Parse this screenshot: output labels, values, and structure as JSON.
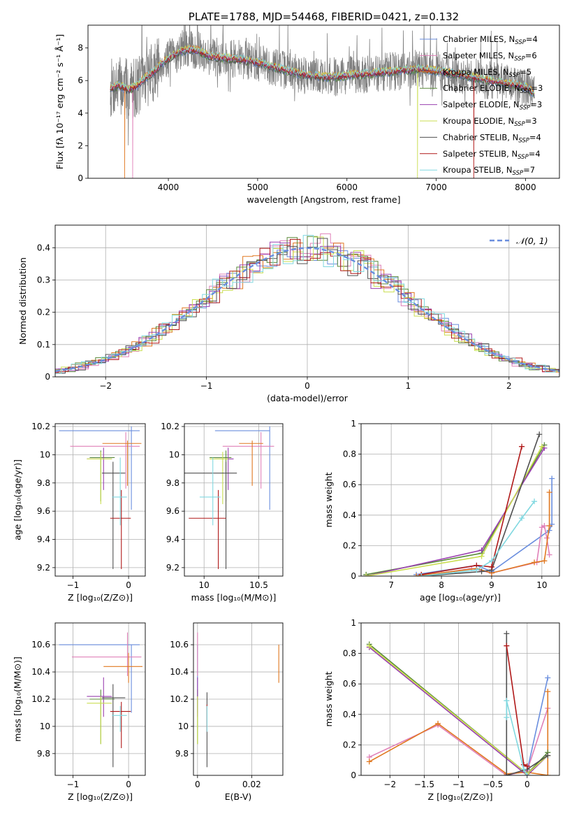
{
  "series_colors": [
    "#6a8ede",
    "#e080b8",
    "#e07820",
    "#5a8a3a",
    "#9a40b0",
    "#cade50",
    "#505050",
    "#b01818",
    "#80d8e0"
  ],
  "chart_data": [
    {
      "id": "spectrum",
      "type": "line",
      "title": "PLATE=1788, MJD=54468, FIBERID=0421, z=0.132",
      "xlabel": "wavelength [Angstrom, rest frame]",
      "ylabel": "Flux [fλ 10⁻¹⁷ erg cm⁻² s⁻¹ Å⁻¹]",
      "xlim": [
        3100,
        8380
      ],
      "ylim": [
        0,
        9.4
      ],
      "xticks": [
        4000,
        5000,
        6000,
        7000,
        8000
      ],
      "yticks": [
        0,
        2,
        4,
        6,
        8
      ],
      "grid": false,
      "legend_position": "top-right",
      "legend": [
        {
          "label": "Chabrier MILES, NSSP=4",
          "base": "Chabrier MILES, N",
          "sub": "SSP",
          "tail": "=4",
          "color": "#6a8ede"
        },
        {
          "label": "Salpeter MILES, NSSP=6",
          "base": "Salpeter MILES, N",
          "sub": "SSP",
          "tail": "=6",
          "color": "#e080b8"
        },
        {
          "label": "Kroupa MILES, NSSP=5",
          "base": "Kroupa MILES, N",
          "sub": "SSP",
          "tail": "=5",
          "color": "#e07820"
        },
        {
          "label": "Chabrier ELODIE, NSSP=3",
          "base": "Chabrier ELODIE, N",
          "sub": "SSP",
          "tail": "=3",
          "color": "#5a8a3a"
        },
        {
          "label": "Salpeter ELODIE, NSSP=3",
          "base": "Salpeter ELODIE, N",
          "sub": "SSP",
          "tail": "=3",
          "color": "#9a40b0"
        },
        {
          "label": "Kroupa ELODIE, NSSP=3",
          "base": "Kroupa ELODIE, N",
          "sub": "SSP",
          "tail": "=3",
          "color": "#cade50"
        },
        {
          "label": "Chabrier STELIB, NSSP=4",
          "base": "Chabrier STELIB, N",
          "sub": "SSP",
          "tail": "=4",
          "color": "#505050"
        },
        {
          "label": "Salpeter STELIB, NSSP=4",
          "base": "Salpeter STELIB, N",
          "sub": "SSP",
          "tail": "=4",
          "color": "#b01818"
        },
        {
          "label": "Kroupa STELIB, NSSP=7",
          "base": "Kroupa STELIB, N",
          "sub": "SSP",
          "tail": "=7",
          "color": "#80d8e0"
        }
      ],
      "model_continuum": {
        "x": [
          3350,
          3450,
          3550,
          3650,
          3750,
          3850,
          3950,
          4050,
          4150,
          4250,
          4350,
          4450,
          4600,
          4800,
          5000,
          5200,
          5400,
          5600,
          5800,
          6000,
          6200,
          6400,
          6600,
          6800,
          7000,
          7200,
          7400,
          7600,
          7800,
          8000,
          8100
        ],
        "y": [
          5.5,
          5.7,
          5.4,
          5.7,
          6.2,
          6.6,
          7.2,
          7.5,
          7.8,
          7.9,
          7.8,
          7.5,
          7.4,
          7.3,
          7.1,
          6.8,
          6.5,
          6.3,
          6.2,
          6.3,
          6.4,
          6.5,
          6.6,
          6.7,
          6.6,
          6.4,
          6.2,
          6.0,
          5.8,
          5.6,
          5.2
        ]
      },
      "data_noise_amplitude": 1.2
    },
    {
      "id": "residuals",
      "type": "histogram",
      "xlabel": "(data-model)/error",
      "ylabel": "Normed distribution",
      "xlim": [
        -2.5,
        2.5
      ],
      "ylim": [
        0,
        0.47
      ],
      "xticks": [
        -2,
        -1,
        0,
        1,
        2
      ],
      "yticks": [
        0,
        0.1,
        0.2,
        0.3,
        0.4
      ],
      "grid": true,
      "bin_width": 0.1,
      "legend_position": "top-right",
      "reference_curve": {
        "label": "𝒩(0, 1)",
        "mean": 0,
        "sigma": 1,
        "color": "#6a8ede"
      }
    },
    {
      "id": "age-vs-Z",
      "type": "errorbar",
      "xlabel": "Z [log₁₀(Z/Z⊙)]",
      "ylabel": "age  [log₁₀(age/yr)]",
      "xlim": [
        -1.32,
        0.3
      ],
      "ylim": [
        9.14,
        10.22
      ],
      "xticks": [
        -1,
        0
      ],
      "yticks": [
        9.2,
        9.4,
        9.6,
        9.8,
        10.0,
        10.2
      ],
      "grid": true,
      "points": [
        {
          "x": 0.05,
          "y": 10.17,
          "xerr": [
            1.3,
            0.15
          ],
          "yerr": [
            0.56,
            0.03
          ]
        },
        {
          "x": -0.05,
          "y": 10.06,
          "xerr": [
            1.0,
            0.25
          ],
          "yerr": [
            0.3,
            0.1
          ]
        },
        {
          "x": -0.02,
          "y": 10.08,
          "xerr": [
            0.45,
            0.25
          ],
          "yerr": [
            0.3,
            0.02
          ]
        },
        {
          "x": -0.5,
          "y": 9.98,
          "xerr": [
            0.2,
            0.25
          ],
          "yerr": [
            0.31,
            0.05
          ]
        },
        {
          "x": -0.45,
          "y": 9.97,
          "xerr": [
            0.3,
            0.15
          ],
          "yerr": [
            0.22,
            0.08
          ]
        },
        {
          "x": -0.5,
          "y": 9.97,
          "xerr": [
            0.25,
            0.2
          ],
          "yerr": [
            0.32,
            0.05
          ]
        },
        {
          "x": -0.28,
          "y": 9.87,
          "xerr": [
            0.2,
            0.22
          ],
          "yerr": [
            0.68,
            0.08
          ]
        },
        {
          "x": -0.13,
          "y": 9.55,
          "xerr": [
            0.2,
            0.17
          ],
          "yerr": [
            0.36,
            0.2
          ]
        },
        {
          "x": -0.15,
          "y": 9.7,
          "xerr": [
            0.15,
            0.12
          ],
          "yerr": [
            0.2,
            0.28
          ]
        }
      ]
    },
    {
      "id": "age-vs-mass",
      "type": "errorbar",
      "xlabel": "mass [log₁₀(M/M⊙)]",
      "ylabel": "",
      "xlim": [
        9.82,
        10.72
      ],
      "ylim": [
        9.14,
        10.22
      ],
      "xticks": [
        10.0,
        10.5
      ],
      "yticks": [
        9.2,
        9.4,
        9.6,
        9.8,
        10.0,
        10.2
      ],
      "grid": true,
      "points": [
        {
          "x": 10.6,
          "y": 10.17,
          "xerr": [
            0.5,
            0.0
          ],
          "yerr": [
            0.56,
            0.03
          ]
        },
        {
          "x": 10.52,
          "y": 10.06,
          "xerr": [
            0.35,
            0.12
          ],
          "yerr": [
            0.3,
            0.1
          ]
        },
        {
          "x": 10.44,
          "y": 10.08,
          "xerr": [
            0.12,
            0.1
          ],
          "yerr": [
            0.3,
            0.02
          ]
        },
        {
          "x": 10.2,
          "y": 9.98,
          "xerr": [
            0.15,
            0.05
          ],
          "yerr": [
            0.31,
            0.05
          ]
        },
        {
          "x": 10.22,
          "y": 9.97,
          "xerr": [
            0.12,
            0.05
          ],
          "yerr": [
            0.22,
            0.08
          ]
        },
        {
          "x": 10.17,
          "y": 9.97,
          "xerr": [
            0.12,
            0.05
          ],
          "yerr": [
            0.32,
            0.05
          ]
        },
        {
          "x": 10.2,
          "y": 9.87,
          "xerr": [
            0.5,
            0.1
          ],
          "yerr": [
            0.68,
            0.08
          ]
        },
        {
          "x": 10.13,
          "y": 9.55,
          "xerr": [
            0.27,
            0.07
          ],
          "yerr": [
            0.36,
            0.2
          ]
        },
        {
          "x": 10.08,
          "y": 9.7,
          "xerr": [
            0.12,
            0.07
          ],
          "yerr": [
            0.2,
            0.28
          ]
        }
      ]
    },
    {
      "id": "weight-vs-age",
      "type": "line",
      "xlabel": "age  [log₁₀(age/yr)]",
      "ylabel": "mass weight",
      "xlim": [
        6.4,
        10.35
      ],
      "ylim": [
        0,
        1.0
      ],
      "xticks": [
        7,
        8,
        9,
        10
      ],
      "yticks": [
        0,
        0.2,
        0.4,
        0.6,
        0.8,
        1.0
      ],
      "grid": true,
      "series": [
        {
          "x": [
            7.5,
            8.7,
            9.0,
            10.15,
            10.2,
            10.2
          ],
          "y": [
            0.01,
            0.07,
            0.03,
            0.3,
            0.34,
            0.64
          ]
        },
        {
          "x": [
            7.6,
            8.6,
            9.0,
            9.9,
            10.0,
            10.05,
            10.1,
            10.15
          ],
          "y": [
            0.0,
            0.05,
            0.02,
            0.09,
            0.32,
            0.33,
            0.25,
            0.14
          ]
        },
        {
          "x": [
            7.5,
            8.7,
            9.0,
            9.85,
            10.05,
            10.15,
            10.15
          ],
          "y": [
            0.0,
            0.05,
            0.02,
            0.09,
            0.1,
            0.33,
            0.55
          ]
        },
        {
          "x": [
            6.5,
            8.8,
            10.05
          ],
          "y": [
            0.01,
            0.15,
            0.86
          ]
        },
        {
          "x": [
            6.5,
            8.8,
            10.05
          ],
          "y": [
            0.0,
            0.17,
            0.84
          ]
        },
        {
          "x": [
            6.5,
            8.8,
            10.0
          ],
          "y": [
            0.0,
            0.13,
            0.85
          ]
        },
        {
          "x": [
            7.6,
            8.8,
            9.0,
            9.95
          ],
          "y": [
            0.0,
            0.03,
            0.04,
            0.93
          ]
        },
        {
          "x": [
            7.6,
            8.7,
            9.0,
            9.6
          ],
          "y": [
            0.01,
            0.07,
            0.06,
            0.85
          ]
        },
        {
          "x": [
            7.6,
            8.7,
            9.0,
            9.6,
            9.85
          ],
          "y": [
            0.0,
            0.04,
            0.1,
            0.38,
            0.49
          ]
        }
      ]
    },
    {
      "id": "mass-vs-Z",
      "type": "errorbar",
      "xlabel": "Z [log₁₀(Z/Z⊙)]",
      "ylabel": "mass [log₁₀(M/M⊙)]",
      "xlim": [
        -1.32,
        0.3
      ],
      "ylim": [
        9.64,
        10.76
      ],
      "xticks": [
        -1,
        0
      ],
      "yticks": [
        9.8,
        10.0,
        10.2,
        10.4,
        10.6
      ],
      "grid": true,
      "points": [
        {
          "x": 0.05,
          "y": 10.6,
          "xerr": [
            1.3,
            0.15
          ],
          "yerr": [
            0.5,
            0.0
          ]
        },
        {
          "x": -0.02,
          "y": 10.51,
          "xerr": [
            1.0,
            0.25
          ],
          "yerr": [
            0.14,
            0.18
          ]
        },
        {
          "x": 0.0,
          "y": 10.44,
          "xerr": [
            0.45,
            0.25
          ],
          "yerr": [
            0.12,
            0.1
          ]
        },
        {
          "x": -0.5,
          "y": 10.2,
          "xerr": [
            0.2,
            0.25
          ],
          "yerr": [
            0.33,
            0.07
          ]
        },
        {
          "x": -0.45,
          "y": 10.22,
          "xerr": [
            0.3,
            0.15
          ],
          "yerr": [
            0.15,
            0.14
          ]
        },
        {
          "x": -0.5,
          "y": 10.17,
          "xerr": [
            0.25,
            0.2
          ],
          "yerr": [
            0.3,
            0.05
          ]
        },
        {
          "x": -0.28,
          "y": 10.21,
          "xerr": [
            0.2,
            0.22
          ],
          "yerr": [
            0.51,
            0.1
          ]
        },
        {
          "x": -0.13,
          "y": 10.11,
          "xerr": [
            0.2,
            0.17
          ],
          "yerr": [
            0.27,
            0.07
          ]
        },
        {
          "x": -0.15,
          "y": 10.08,
          "xerr": [
            0.15,
            0.12
          ],
          "yerr": [
            0.12,
            0.07
          ]
        }
      ]
    },
    {
      "id": "mass-vs-EBV",
      "type": "errorbar",
      "xlabel": "E(B-V)",
      "ylabel": "",
      "xlim": [
        -0.0015,
        0.0315
      ],
      "ylim": [
        9.64,
        10.76
      ],
      "xticks": [
        0.0,
        0.02
      ],
      "yticks": [
        9.8,
        10.0,
        10.2,
        10.4,
        10.6
      ],
      "grid": true,
      "points": [
        {
          "x": 0.0,
          "y": 10.6,
          "xerr": [
            0,
            0
          ],
          "yerr": [
            0.5,
            0.0
          ]
        },
        {
          "x": 0.0,
          "y": 10.51,
          "xerr": [
            0,
            0
          ],
          "yerr": [
            0.14,
            0.18
          ]
        },
        {
          "x": 0.03,
          "y": 10.44,
          "xerr": [
            0,
            0
          ],
          "yerr": [
            0.12,
            0.16
          ]
        },
        {
          "x": 0.0,
          "y": 10.2,
          "xerr": [
            0,
            0
          ],
          "yerr": [
            0.33,
            0.07
          ]
        },
        {
          "x": 0.0,
          "y": 10.22,
          "xerr": [
            0,
            0
          ],
          "yerr": [
            0.15,
            0.14
          ]
        },
        {
          "x": 0.0,
          "y": 10.17,
          "xerr": [
            0,
            0
          ],
          "yerr": [
            0.3,
            0.05
          ]
        },
        {
          "x": 0.0035,
          "y": 10.21,
          "xerr": [
            0,
            0
          ],
          "yerr": [
            0.51,
            0.04
          ]
        },
        {
          "x": 0.0035,
          "y": 10.11,
          "xerr": [
            0,
            0
          ],
          "yerr": [
            0.15,
            0.05
          ]
        },
        {
          "x": 0.0035,
          "y": 10.08,
          "xerr": [
            0,
            0
          ],
          "yerr": [
            0.12,
            0.07
          ]
        }
      ]
    },
    {
      "id": "weight-vs-Z",
      "type": "line",
      "xlabel": "Z [log₁₀(Z/Z⊙)]",
      "ylabel": "mass weight",
      "xlim": [
        -2.42,
        0.47
      ],
      "ylim": [
        0,
        1.0
      ],
      "xticks": [
        -2.0,
        -1.5,
        -1.0,
        -0.5,
        0.0
      ],
      "yticks": [
        0,
        0.2,
        0.4,
        0.6,
        0.8,
        1.0
      ],
      "grid": true,
      "series": [
        {
          "x": [
            -0.3,
            0.0,
            0.3
          ],
          "y": [
            0.0,
            0.03,
            0.64
          ]
        },
        {
          "x": [
            -2.3,
            -1.3,
            -0.3,
            0.0,
            0.3
          ],
          "y": [
            0.12,
            0.33,
            0.0,
            0.03,
            0.44
          ]
        },
        {
          "x": [
            -2.3,
            -1.3,
            -0.3,
            0.0,
            0.3,
            0.3
          ],
          "y": [
            0.09,
            0.34,
            0.01,
            0.02,
            0.0,
            0.55
          ]
        },
        {
          "x": [
            -2.3,
            0.0,
            0.3
          ],
          "y": [
            0.86,
            0.01,
            0.15
          ]
        },
        {
          "x": [
            -2.3,
            0.0,
            0.3
          ],
          "y": [
            0.84,
            0.0,
            0.13
          ]
        },
        {
          "x": [
            -2.3,
            0.0,
            0.3
          ],
          "y": [
            0.85,
            0.01,
            0.13
          ]
        },
        {
          "x": [
            -0.3,
            -0.3,
            0.0,
            0.3
          ],
          "y": [
            0.93,
            0.0,
            0.04,
            0.13
          ]
        },
        {
          "x": [
            -0.3,
            -0.05,
            0.0
          ],
          "y": [
            0.85,
            0.07,
            0.06
          ]
        },
        {
          "x": [
            -0.3,
            -0.3,
            -0.05,
            0.0
          ],
          "y": [
            0.38,
            0.49,
            0.04,
            0.0
          ]
        }
      ]
    }
  ]
}
